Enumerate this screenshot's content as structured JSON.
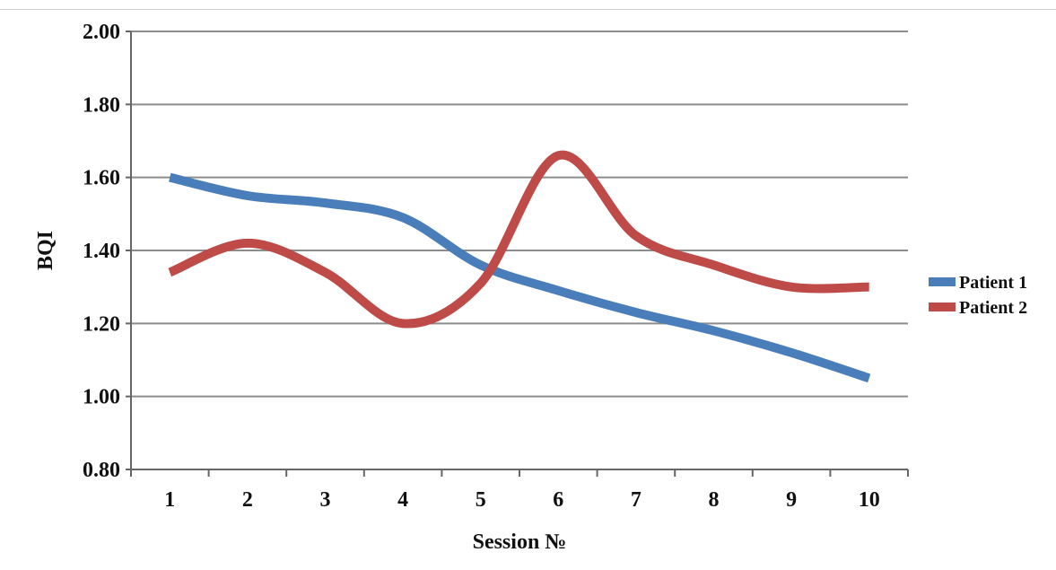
{
  "chart_data": {
    "type": "line",
    "xlabel": "Session №",
    "ylabel": "BQI",
    "categories": [
      "1",
      "2",
      "3",
      "4",
      "5",
      "6",
      "7",
      "8",
      "9",
      "10"
    ],
    "y_ticks": [
      "0.80",
      "1.00",
      "1.20",
      "1.40",
      "1.60",
      "1.80",
      "2.00"
    ],
    "ylim": [
      0.8,
      2.0
    ],
    "grid": true,
    "smooth": true,
    "legend_position": "right",
    "series": [
      {
        "name": "Patient 1",
        "color": "#4a7ebb",
        "values": [
          1.6,
          1.55,
          1.53,
          1.49,
          1.36,
          1.29,
          1.23,
          1.18,
          1.12,
          1.05
        ]
      },
      {
        "name": "Patient 2",
        "color": "#be4b48",
        "values": [
          1.34,
          1.42,
          1.34,
          1.2,
          1.31,
          1.66,
          1.44,
          1.36,
          1.3,
          1.3
        ]
      }
    ]
  }
}
